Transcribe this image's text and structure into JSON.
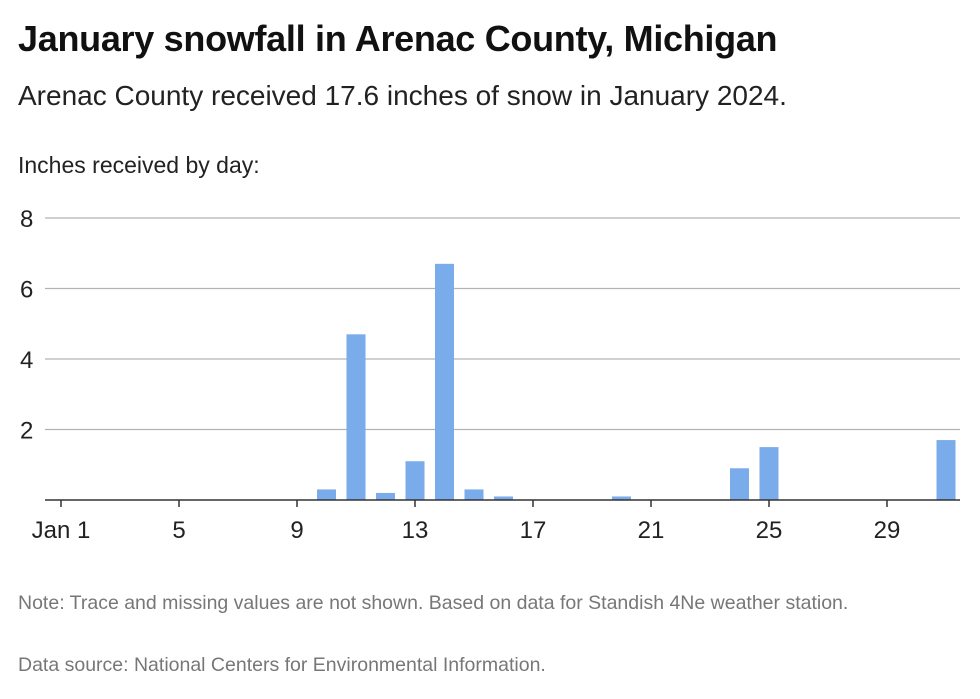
{
  "header": {
    "title": "January snowfall in Arenac County, Michigan",
    "subtitle": "Arenac County received 17.6 inches of snow in January 2024."
  },
  "footer": {
    "note": "Note: Trace and missing values are not shown. Based on data for Standish 4Ne weather station.",
    "source": "Data source: National Centers for Environmental Information."
  },
  "colors": {
    "bar": "#7aabea",
    "grid": "#b3b3b3",
    "axis": "#333333"
  },
  "chart_data": {
    "type": "bar",
    "ylabel": "Inches received by day:",
    "xlabel": "",
    "ylim": [
      0,
      8
    ],
    "yticks": [
      2,
      4,
      6,
      8
    ],
    "xtick_labels": [
      {
        "day": 1,
        "label": "Jan 1"
      },
      {
        "day": 5,
        "label": "5"
      },
      {
        "day": 9,
        "label": "9"
      },
      {
        "day": 13,
        "label": "13"
      },
      {
        "day": 17,
        "label": "17"
      },
      {
        "day": 21,
        "label": "21"
      },
      {
        "day": 25,
        "label": "25"
      },
      {
        "day": 29,
        "label": "29"
      }
    ],
    "grid": true,
    "categories": [
      1,
      2,
      3,
      4,
      5,
      6,
      7,
      8,
      9,
      10,
      11,
      12,
      13,
      14,
      15,
      16,
      17,
      18,
      19,
      20,
      21,
      22,
      23,
      24,
      25,
      26,
      27,
      28,
      29,
      30,
      31
    ],
    "values": [
      0,
      0,
      0,
      0,
      0,
      0,
      0,
      0,
      0,
      0.3,
      4.7,
      0.2,
      1.1,
      6.7,
      0.3,
      0.1,
      0,
      0,
      0,
      0.1,
      0,
      0,
      0,
      0.9,
      1.5,
      0,
      0,
      0,
      0,
      0,
      1.7
    ]
  }
}
